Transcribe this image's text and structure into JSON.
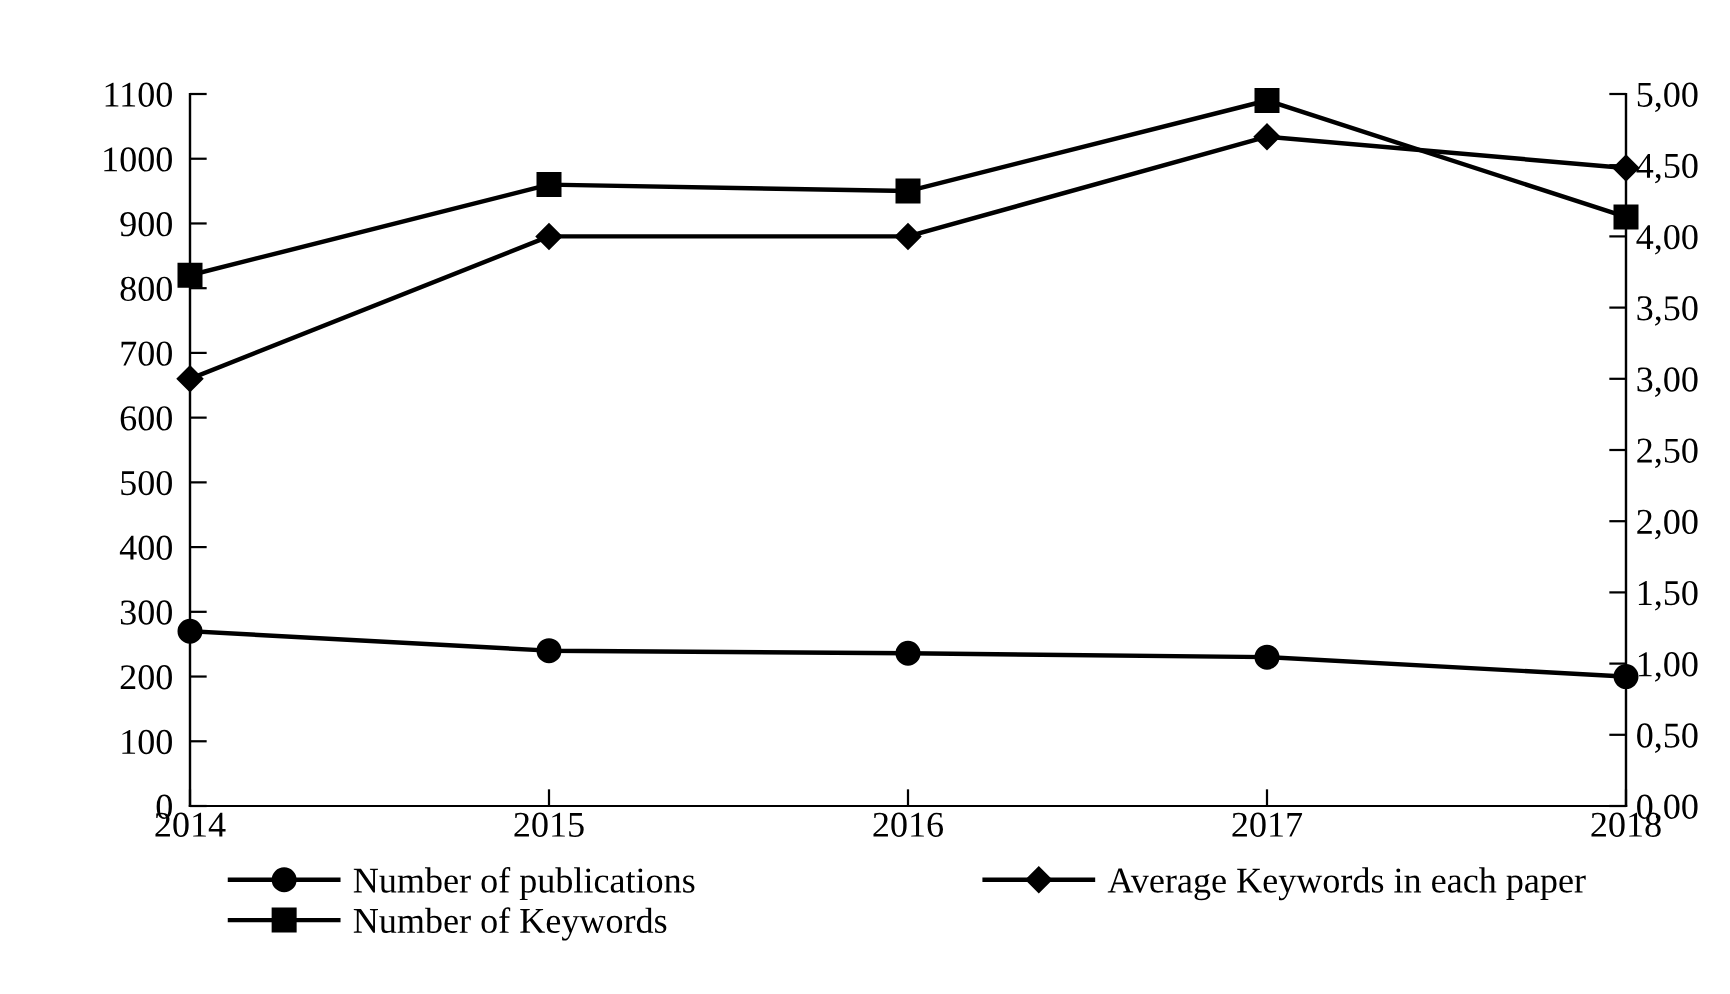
{
  "chart_data": {
    "type": "line",
    "categories": [
      "2014",
      "2015",
      "2016",
      "2017",
      "2018"
    ],
    "series": [
      {
        "name": "Number of publications",
        "color": "#000000",
        "marker": "circle",
        "values": [
          270,
          240,
          236,
          230,
          200
        ]
      },
      {
        "name": "Number of Keywords",
        "color": "#000000",
        "marker": "square",
        "values": [
          820,
          960,
          950,
          1090,
          910
        ]
      },
      {
        "name": "Average Keywords in each paper",
        "color": "#000000",
        "marker": "diamond",
        "axis": "y2",
        "values": [
          3.0,
          4.0,
          4.0,
          4.7,
          4.48
        ]
      }
    ],
    "ylim": [
      0,
      1100
    ],
    "yticks": [
      0,
      100,
      200,
      300,
      400,
      500,
      600,
      700,
      800,
      900,
      1000,
      1100
    ],
    "y2lim": [
      0,
      5
    ],
    "y2ticks": [
      {
        "value": 0,
        "label": "0,00"
      },
      {
        "value": 0.5,
        "label": "0,50"
      },
      {
        "value": 1,
        "label": "1,00"
      },
      {
        "value": 1.5,
        "label": "1,50"
      },
      {
        "value": 2,
        "label": "2,00"
      },
      {
        "value": 2.5,
        "label": "2,50"
      },
      {
        "value": 3,
        "label": "3,00"
      },
      {
        "value": 3.5,
        "label": "3,50"
      },
      {
        "value": 4,
        "label": "4,00"
      },
      {
        "value": 4.5,
        "label": "4,50"
      },
      {
        "value": 5,
        "label": "5,00"
      }
    ],
    "grid": false,
    "legend": "bottom",
    "line_style": "solid"
  }
}
